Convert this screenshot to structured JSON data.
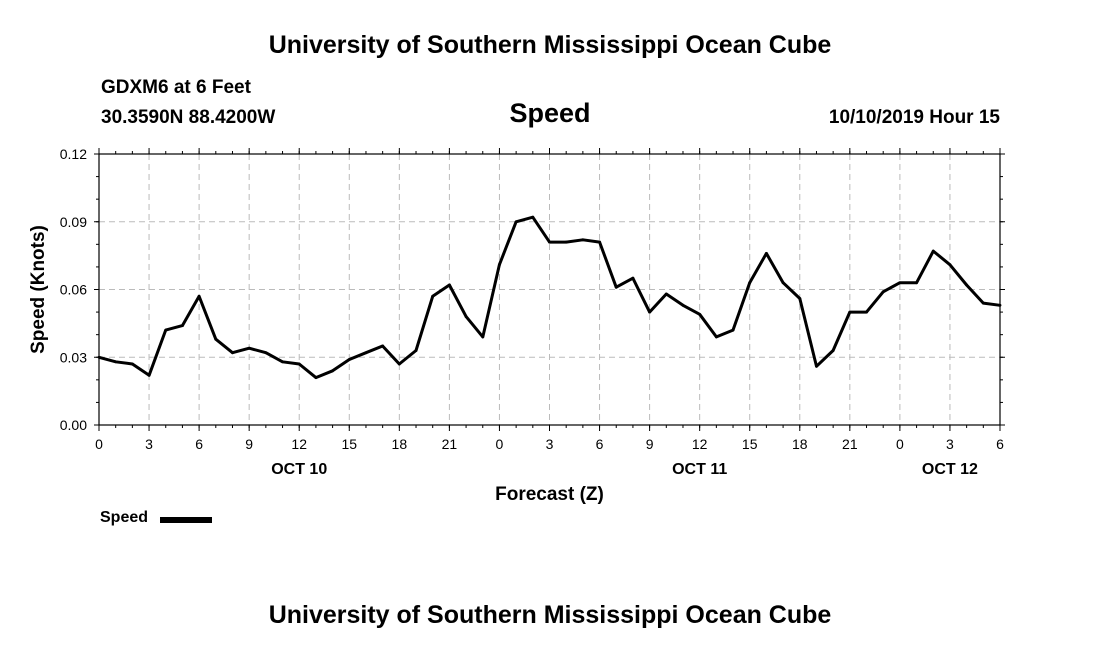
{
  "header": {
    "title": "University of Southern Mississippi Ocean Cube",
    "station": "GDXM6 at 6 Feet",
    "coords": "30.3590N 88.4200W",
    "date": "10/10/2019 Hour 15"
  },
  "footer": {
    "title": "University of Southern Mississippi Ocean Cube"
  },
  "legend": {
    "label": "Speed"
  },
  "chart_data": {
    "type": "line",
    "title": "Speed",
    "xlabel": "Forecast (Z)",
    "ylabel": "Speed (Knots)",
    "ylim": [
      0.0,
      0.12
    ],
    "yticks": [
      "0.00",
      "0.03",
      "0.06",
      "0.09",
      "0.12"
    ],
    "xlim": [
      0,
      54
    ],
    "xtick_labels": [
      "0",
      "3",
      "6",
      "9",
      "12",
      "15",
      "18",
      "21",
      "0",
      "3",
      "6",
      "9",
      "12",
      "15",
      "18",
      "21",
      "0",
      "3",
      "6"
    ],
    "day_labels": [
      {
        "label": "OCT 10",
        "hour": 12
      },
      {
        "label": "OCT 11",
        "hour": 36
      },
      {
        "label": "OCT 12",
        "hour": 51
      }
    ],
    "grid": true,
    "series": [
      {
        "name": "Speed",
        "color": "#000000",
        "x": [
          0,
          1,
          2,
          3,
          4,
          5,
          6,
          7,
          8,
          9,
          10,
          11,
          12,
          13,
          14,
          15,
          16,
          17,
          18,
          19,
          20,
          21,
          22,
          23,
          24,
          25,
          26,
          27,
          28,
          29,
          30,
          31,
          32,
          33,
          34,
          35,
          36,
          37,
          38,
          39,
          40,
          41,
          42,
          43,
          44,
          45,
          46,
          47,
          48,
          49,
          50,
          51,
          52,
          53,
          54
        ],
        "values": [
          0.03,
          0.028,
          0.027,
          0.022,
          0.042,
          0.044,
          0.057,
          0.038,
          0.032,
          0.034,
          0.032,
          0.028,
          0.027,
          0.021,
          0.024,
          0.029,
          0.032,
          0.035,
          0.027,
          0.033,
          0.057,
          0.062,
          0.048,
          0.039,
          0.071,
          0.09,
          0.092,
          0.081,
          0.081,
          0.082,
          0.081,
          0.061,
          0.065,
          0.05,
          0.058,
          0.053,
          0.049,
          0.039,
          0.042,
          0.063,
          0.076,
          0.063,
          0.056,
          0.026,
          0.033,
          0.05,
          0.05,
          0.059,
          0.063,
          0.063,
          0.077,
          0.071,
          0.062,
          0.054,
          0.053
        ]
      }
    ]
  }
}
